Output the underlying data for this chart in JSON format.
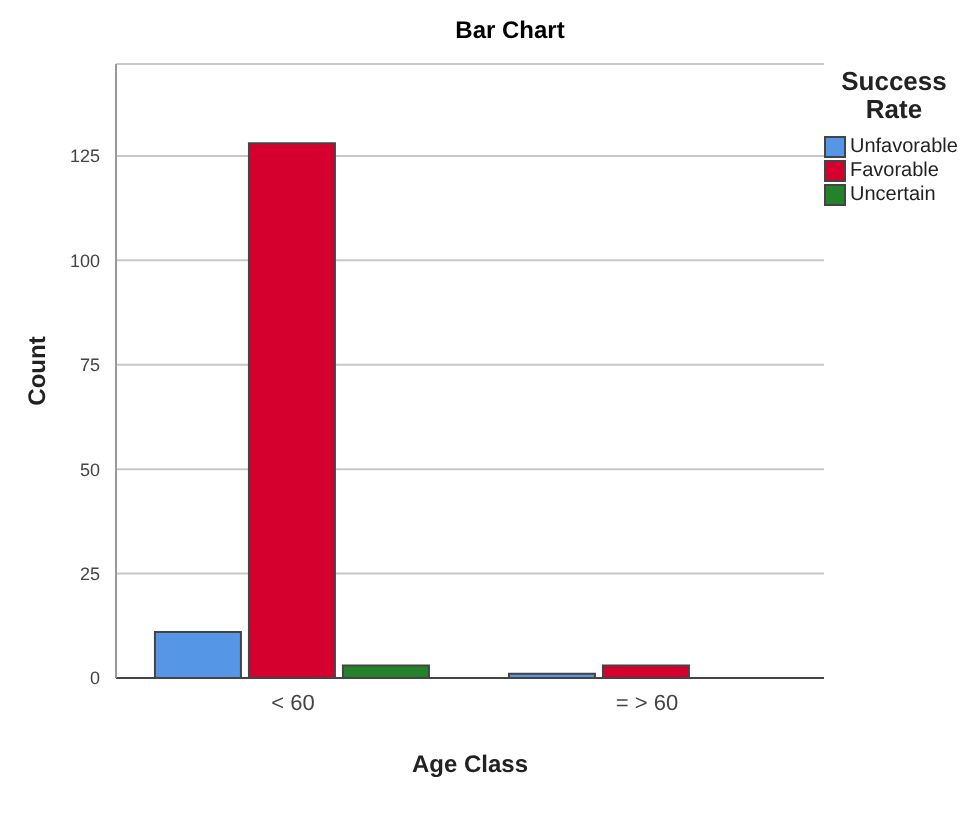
{
  "chart_data": {
    "type": "bar",
    "title": "Bar Chart",
    "xlabel": "Age Class",
    "ylabel": "Count",
    "legend_title": "Success Rate",
    "categories": [
      "< 60",
      "= > 60"
    ],
    "series": [
      {
        "name": "Unfavorable",
        "color": "#5596e6",
        "values": [
          11,
          1
        ]
      },
      {
        "name": "Favorable",
        "color": "#d6002f",
        "values": [
          128,
          3
        ]
      },
      {
        "name": "Uncertain",
        "color": "#23822a",
        "values": [
          3,
          0
        ]
      }
    ],
    "ylim": [
      0,
      147
    ],
    "yticks": [
      0,
      25,
      50,
      75,
      100,
      125
    ],
    "grid": "y",
    "legend": "top right"
  }
}
